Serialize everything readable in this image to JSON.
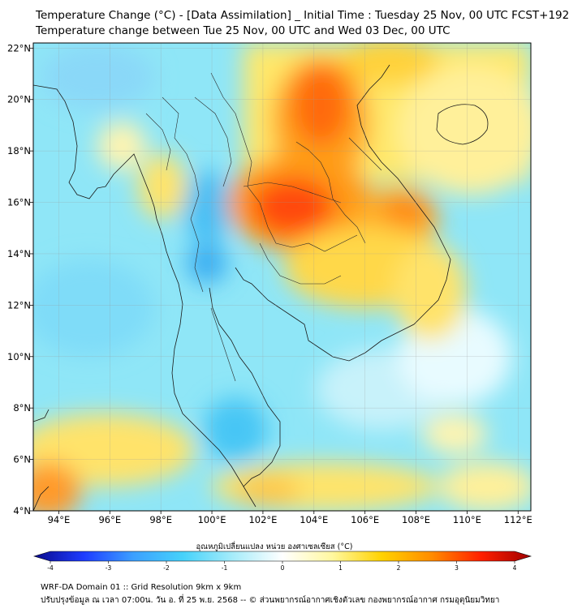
{
  "title_line1": "Temperature Change (°C) - [Data Assimilation] _ Initial Time : Tuesday 25 Nov, 00 UTC FCST+192",
  "title_line2": "Temperature change between Tue 25 Nov, 00 UTC and Wed 03 Dec, 00 UTC",
  "map": {
    "lon_range": [
      93,
      112.5
    ],
    "lat_range": [
      4,
      22.2
    ],
    "lon_ticks": [
      {
        "value": 94,
        "label": "94°E"
      },
      {
        "value": 96,
        "label": "96°E"
      },
      {
        "value": 98,
        "label": "98°E"
      },
      {
        "value": 100,
        "label": "100°E"
      },
      {
        "value": 102,
        "label": "102°E"
      },
      {
        "value": 104,
        "label": "104°E"
      },
      {
        "value": 106,
        "label": "106°E"
      },
      {
        "value": 108,
        "label": "108°E"
      },
      {
        "value": 110,
        "label": "110°E"
      },
      {
        "value": 112,
        "label": "112°E"
      }
    ],
    "lat_ticks": [
      {
        "value": 22,
        "label": "22°N"
      },
      {
        "value": 20,
        "label": "20°N"
      },
      {
        "value": 18,
        "label": "18°N"
      },
      {
        "value": 16,
        "label": "16°N"
      },
      {
        "value": 14,
        "label": "14°N"
      },
      {
        "value": 12,
        "label": "12°N"
      },
      {
        "value": 10,
        "label": "10°N"
      },
      {
        "value": 8,
        "label": "8°N"
      },
      {
        "value": 6,
        "label": "6°N"
      },
      {
        "value": 4,
        "label": "4°N"
      }
    ],
    "grid": true
  },
  "colorbar": {
    "title": "อุณหภูมิเปลี่ยนแปลง หน่วย องศาเซลเซียส (°C)",
    "min": -4,
    "max": 4,
    "ticks": [
      {
        "value": -4,
        "label": "-4"
      },
      {
        "value": -3,
        "label": "-3"
      },
      {
        "value": -2,
        "label": "-2"
      },
      {
        "value": -1,
        "label": "-1"
      },
      {
        "value": 0,
        "label": "0"
      },
      {
        "value": 1,
        "label": "1"
      },
      {
        "value": 2,
        "label": "2"
      },
      {
        "value": 3,
        "label": "3"
      },
      {
        "value": 4,
        "label": "4"
      }
    ],
    "colors": [
      "#0a0a8c",
      "#1e3cff",
      "#3ca0ff",
      "#46d2fa",
      "#a6ecfa",
      "#ffffff",
      "#fff8a0",
      "#ffd200",
      "#ff8c00",
      "#ff2000",
      "#a00000"
    ]
  },
  "footer_line1": "WRF-DA Domain 01 :: Grid Resolution 9km x 9km",
  "footer_line2": "ปรับปรุงข้อมูล ณ เวลา 07:00น. วัน อ. ที่ 25 พ.ย. 2568 -- © ส่วนพยากรณ์อากาศเชิงตัวเลข กองพยากรณ์อากาศ กรมอุตุนิยมวิทยา"
}
